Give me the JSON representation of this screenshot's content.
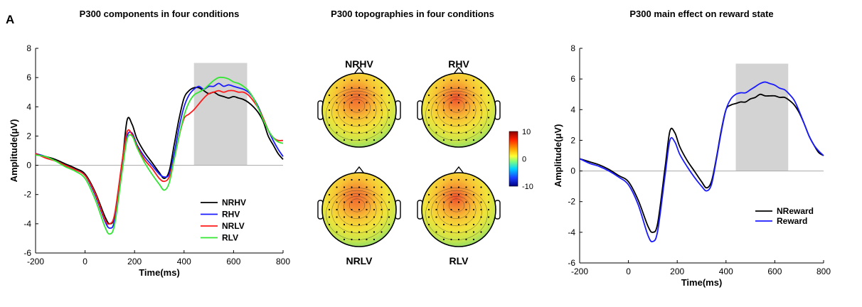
{
  "panel_label": "A",
  "chart_data": [
    {
      "type": "line",
      "title": "P300 components in four conditions",
      "xlabel": "Time(ms)",
      "ylabel": "Amplitude(μV)",
      "xlim": [
        -200,
        800
      ],
      "ylim": [
        -6,
        8
      ],
      "xticks": [
        "-200",
        "0",
        "200",
        "400",
        "600",
        "800"
      ],
      "yticks": [
        "-6",
        "-4",
        "-2",
        "0",
        "2",
        "4",
        "6",
        "8"
      ],
      "shaded_window": [
        440,
        655
      ],
      "legend_position": "bottom-right",
      "series": [
        {
          "name": "NRHV",
          "color": "#000000",
          "x": [
            -200,
            -160,
            -120,
            -80,
            -40,
            0,
            40,
            80,
            100,
            120,
            150,
            170,
            190,
            210,
            240,
            270,
            300,
            320,
            340,
            360,
            380,
            400,
            420,
            440,
            460,
            480,
            500,
            520,
            540,
            560,
            580,
            600,
            620,
            640,
            660,
            680,
            700,
            720,
            740,
            760,
            780,
            800
          ],
          "y": [
            0.8,
            0.6,
            0.4,
            0.1,
            -0.2,
            -0.6,
            -1.8,
            -3.5,
            -4.0,
            -3.4,
            0.2,
            3.1,
            2.8,
            1.8,
            0.9,
            0.2,
            -0.5,
            -0.9,
            -0.4,
            1.4,
            3.2,
            4.6,
            5.1,
            5.3,
            5.3,
            5.1,
            4.9,
            5.0,
            4.8,
            4.7,
            4.6,
            4.7,
            4.6,
            4.5,
            4.3,
            4.0,
            3.6,
            3.0,
            2.0,
            1.4,
            0.8,
            0.4
          ]
        },
        {
          "name": "RHV",
          "color": "#1a1aff",
          "x": [
            -200,
            -160,
            -120,
            -80,
            -40,
            0,
            40,
            80,
            100,
            120,
            150,
            170,
            190,
            210,
            240,
            270,
            300,
            320,
            340,
            360,
            380,
            400,
            420,
            440,
            460,
            480,
            500,
            520,
            540,
            560,
            580,
            600,
            620,
            640,
            660,
            680,
            700,
            720,
            740,
            760,
            780,
            800
          ],
          "y": [
            0.8,
            0.6,
            0.3,
            0.0,
            -0.3,
            -0.7,
            -2.0,
            -3.8,
            -4.3,
            -3.7,
            0.0,
            2.0,
            2.2,
            1.4,
            0.6,
            0.0,
            -0.6,
            -0.8,
            -0.6,
            0.8,
            2.6,
            4.0,
            4.8,
            5.2,
            5.4,
            5.2,
            5.4,
            5.4,
            5.6,
            5.4,
            5.5,
            5.4,
            5.3,
            5.2,
            5.0,
            4.6,
            4.0,
            3.2,
            2.4,
            1.7,
            1.1,
            0.6
          ]
        },
        {
          "name": "NRLV",
          "color": "#ff1a1a",
          "x": [
            -200,
            -160,
            -120,
            -80,
            -40,
            0,
            40,
            80,
            100,
            120,
            150,
            170,
            190,
            210,
            240,
            270,
            300,
            320,
            340,
            360,
            380,
            400,
            420,
            440,
            460,
            480,
            500,
            520,
            540,
            560,
            580,
            600,
            620,
            640,
            660,
            680,
            700,
            720,
            740,
            760,
            780,
            800
          ],
          "y": [
            0.8,
            0.5,
            0.3,
            0.0,
            -0.3,
            -0.7,
            -1.9,
            -3.7,
            -4.0,
            -3.3,
            0.3,
            2.3,
            2.1,
            1.3,
            0.4,
            -0.2,
            -0.9,
            -1.1,
            -0.8,
            0.4,
            2.0,
            3.2,
            3.5,
            3.8,
            4.2,
            4.6,
            4.9,
            5.0,
            5.1,
            5.0,
            5.1,
            5.1,
            5.0,
            5.0,
            4.8,
            4.4,
            3.9,
            3.2,
            2.4,
            1.9,
            1.7,
            1.7
          ]
        },
        {
          "name": "RLV",
          "color": "#33e633",
          "x": [
            -200,
            -160,
            -120,
            -80,
            -40,
            0,
            40,
            80,
            100,
            120,
            150,
            170,
            190,
            210,
            240,
            270,
            300,
            320,
            340,
            360,
            380,
            400,
            420,
            440,
            460,
            480,
            500,
            520,
            540,
            560,
            580,
            600,
            620,
            640,
            660,
            680,
            700,
            720,
            740,
            760,
            780,
            800
          ],
          "y": [
            0.7,
            0.6,
            0.3,
            -0.1,
            -0.4,
            -0.9,
            -2.3,
            -4.2,
            -4.7,
            -4.0,
            -0.4,
            1.8,
            2.0,
            1.2,
            0.2,
            -0.6,
            -1.3,
            -1.7,
            -1.2,
            0.4,
            2.0,
            3.4,
            4.3,
            4.8,
            5.0,
            5.2,
            5.5,
            5.8,
            6.0,
            6.0,
            5.9,
            5.7,
            5.6,
            5.4,
            5.1,
            4.6,
            3.9,
            3.1,
            2.4,
            1.9,
            1.6,
            1.5
          ]
        }
      ]
    },
    {
      "type": "heatmap",
      "title": "P300 topographies in four conditions",
      "maps": [
        {
          "label": "NRHV",
          "peak": 5.8
        },
        {
          "label": "RHV",
          "peak": 6.2
        },
        {
          "label": "NRLV",
          "peak": 5.2
        },
        {
          "label": "RLV",
          "peak": 6.5
        }
      ],
      "colorbar": {
        "range": [
          -10,
          10
        ],
        "ticks": [
          "10",
          "0",
          "-10"
        ]
      }
    },
    {
      "type": "line",
      "title": "P300 main effect on reward state",
      "xlabel": "Time(ms)",
      "ylabel": "Amplitude(μV)",
      "xlim": [
        -200,
        800
      ],
      "ylim": [
        -6,
        8
      ],
      "xticks": [
        "-200",
        "0",
        "200",
        "400",
        "600",
        "800"
      ],
      "yticks": [
        "-6",
        "-4",
        "-2",
        "0",
        "2",
        "4",
        "6",
        "8"
      ],
      "shaded_window": [
        440,
        655
      ],
      "legend_position": "bottom-right",
      "series": [
        {
          "name": "NReward",
          "color": "#000000",
          "x": [
            -200,
            -160,
            -120,
            -80,
            -40,
            0,
            40,
            80,
            100,
            120,
            150,
            170,
            190,
            210,
            240,
            270,
            300,
            320,
            340,
            360,
            380,
            400,
            420,
            440,
            460,
            480,
            500,
            520,
            540,
            560,
            580,
            600,
            620,
            640,
            660,
            680,
            700,
            720,
            740,
            760,
            780,
            800
          ],
          "y": [
            0.8,
            0.6,
            0.4,
            0.1,
            -0.3,
            -0.7,
            -1.9,
            -3.6,
            -4.0,
            -3.4,
            0.2,
            2.6,
            2.5,
            1.6,
            0.7,
            0.0,
            -0.7,
            -1.1,
            -0.7,
            0.8,
            2.6,
            4.0,
            4.3,
            4.4,
            4.5,
            4.5,
            4.7,
            4.8,
            5.0,
            4.9,
            4.9,
            4.9,
            4.8,
            4.8,
            4.6,
            4.3,
            3.8,
            3.1,
            2.3,
            1.7,
            1.2,
            1.0
          ]
        },
        {
          "name": "Reward",
          "color": "#1a1aff",
          "x": [
            -200,
            -160,
            -120,
            -80,
            -40,
            0,
            40,
            80,
            100,
            120,
            150,
            170,
            190,
            210,
            240,
            270,
            300,
            320,
            340,
            360,
            380,
            400,
            420,
            440,
            460,
            480,
            500,
            520,
            540,
            560,
            580,
            600,
            620,
            640,
            660,
            680,
            700,
            720,
            740,
            760,
            780,
            800
          ],
          "y": [
            0.8,
            0.5,
            0.3,
            0.0,
            -0.4,
            -0.9,
            -2.2,
            -4.2,
            -4.6,
            -3.9,
            -0.3,
            2.0,
            1.9,
            1.1,
            0.3,
            -0.4,
            -1.0,
            -1.3,
            -0.9,
            0.7,
            2.5,
            4.0,
            4.7,
            5.0,
            5.1,
            5.1,
            5.3,
            5.5,
            5.7,
            5.8,
            5.7,
            5.6,
            5.4,
            5.3,
            5.0,
            4.6,
            3.9,
            3.1,
            2.3,
            1.7,
            1.3,
            1.0
          ]
        }
      ]
    }
  ]
}
